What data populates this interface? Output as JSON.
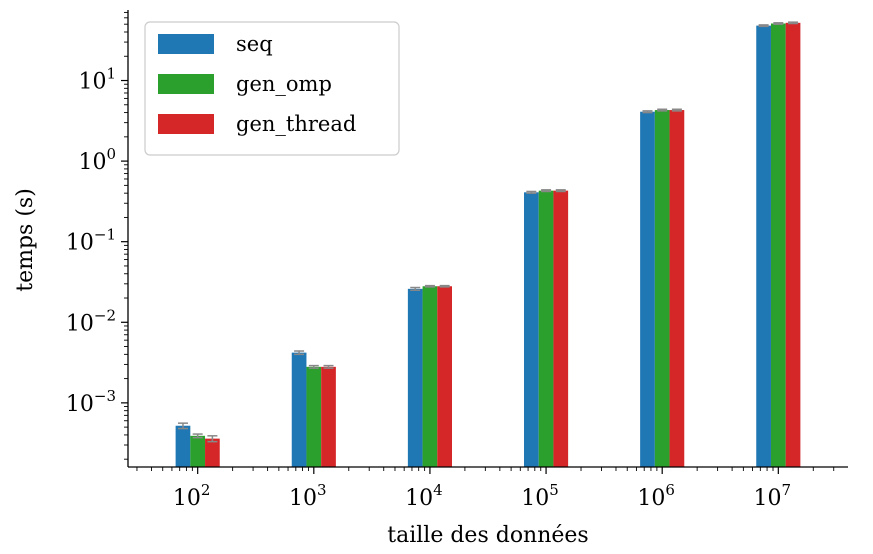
{
  "chart_data": {
    "type": "bar",
    "yscale": "log",
    "xlabel": "taille des données",
    "ylabel": "temps (s)",
    "categories": [
      "10^2",
      "10^3",
      "10^4",
      "10^5",
      "10^6",
      "10^7"
    ],
    "category_labels": [
      {
        "base": "10",
        "exp": "2"
      },
      {
        "base": "10",
        "exp": "3"
      },
      {
        "base": "10",
        "exp": "4"
      },
      {
        "base": "10",
        "exp": "5"
      },
      {
        "base": "10",
        "exp": "6"
      },
      {
        "base": "10",
        "exp": "7"
      }
    ],
    "yticks": [
      {
        "value": 0.001,
        "base": "10",
        "exp": "−3"
      },
      {
        "value": 0.01,
        "base": "10",
        "exp": "−2"
      },
      {
        "value": 0.1,
        "base": "10",
        "exp": "−1"
      },
      {
        "value": 1,
        "base": "10",
        "exp": "0"
      },
      {
        "value": 10,
        "base": "10",
        "exp": "1"
      }
    ],
    "ylim": [
      0.00016,
      75
    ],
    "series": [
      {
        "name": "seq",
        "color": "#1f77b4",
        "values": [
          0.00052,
          0.0042,
          0.026,
          0.41,
          4.1,
          48
        ],
        "errors": [
          4e-05,
          0.0002,
          0.001,
          0.01,
          0.1,
          1
        ]
      },
      {
        "name": "gen_omp",
        "color": "#2ca02c",
        "values": [
          0.00039,
          0.0028,
          0.028,
          0.43,
          4.3,
          51
        ],
        "errors": [
          2e-05,
          0.0001,
          0.0005,
          0.01,
          0.1,
          1
        ]
      },
      {
        "name": "gen_thread",
        "color": "#d62728",
        "values": [
          0.00036,
          0.0028,
          0.028,
          0.43,
          4.3,
          52
        ],
        "errors": [
          3e-05,
          0.0001,
          0.0005,
          0.01,
          0.1,
          1
        ]
      }
    ],
    "error_bar_color": "#888888",
    "grid": false,
    "legend_position": "top-left"
  }
}
